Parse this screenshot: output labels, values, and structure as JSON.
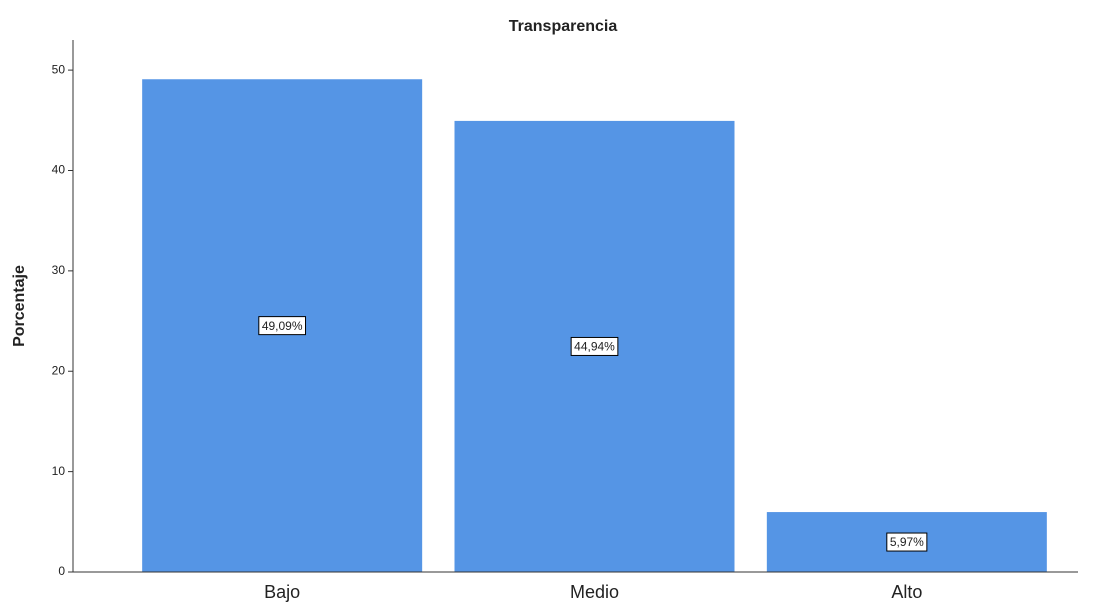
{
  "chart_data": {
    "type": "bar",
    "title": "Transparencia",
    "y_label": "Porcentaje",
    "categories": [
      "Bajo",
      "Medio",
      "Alto"
    ],
    "values": [
      49.09,
      44.94,
      5.97
    ],
    "value_labels": [
      "49,09%",
      "44,94%",
      "5,97%"
    ],
    "color": "#5595e5",
    "ylim": [
      0,
      53
    ],
    "yticks": [
      0,
      10,
      20,
      30,
      40,
      50
    ],
    "grid": false
  }
}
